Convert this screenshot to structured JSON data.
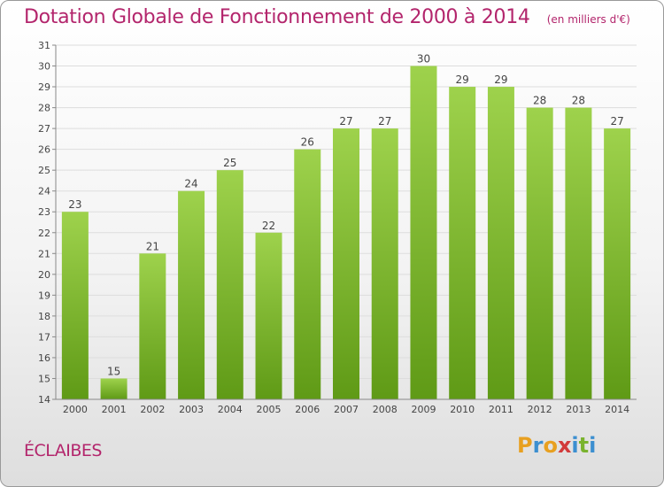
{
  "chart_data": {
    "type": "bar",
    "title": "Dotation Globale de Fonctionnement de 2000 à 2014",
    "subtitle": "(en milliers d'€)",
    "categories": [
      "2000",
      "2001",
      "2002",
      "2003",
      "2004",
      "2005",
      "2006",
      "2007",
      "2008",
      "2009",
      "2010",
      "2011",
      "2012",
      "2013",
      "2014"
    ],
    "values": [
      23,
      15,
      21,
      24,
      25,
      22,
      26,
      27,
      27,
      30,
      29,
      29,
      28,
      28,
      27
    ],
    "ylim": [
      14,
      31
    ],
    "yticks": [
      14,
      15,
      16,
      17,
      18,
      19,
      20,
      21,
      22,
      23,
      24,
      25,
      26,
      27,
      28,
      29,
      30,
      31
    ],
    "grid": true,
    "bar_color": "#7cb82b",
    "label_color": "#444444"
  },
  "location": {
    "name": "ÉCLAIBES"
  },
  "brand": {
    "letters": [
      "P",
      "r",
      "o",
      "x",
      "i",
      "t",
      "i"
    ],
    "colors": [
      "#e8a020",
      "#3c8fd0",
      "#e8a020",
      "#d23b3b",
      "#3c8fd0",
      "#7ab32e",
      "#3c8fd0"
    ]
  },
  "colors": {
    "title": "#b3256c"
  }
}
